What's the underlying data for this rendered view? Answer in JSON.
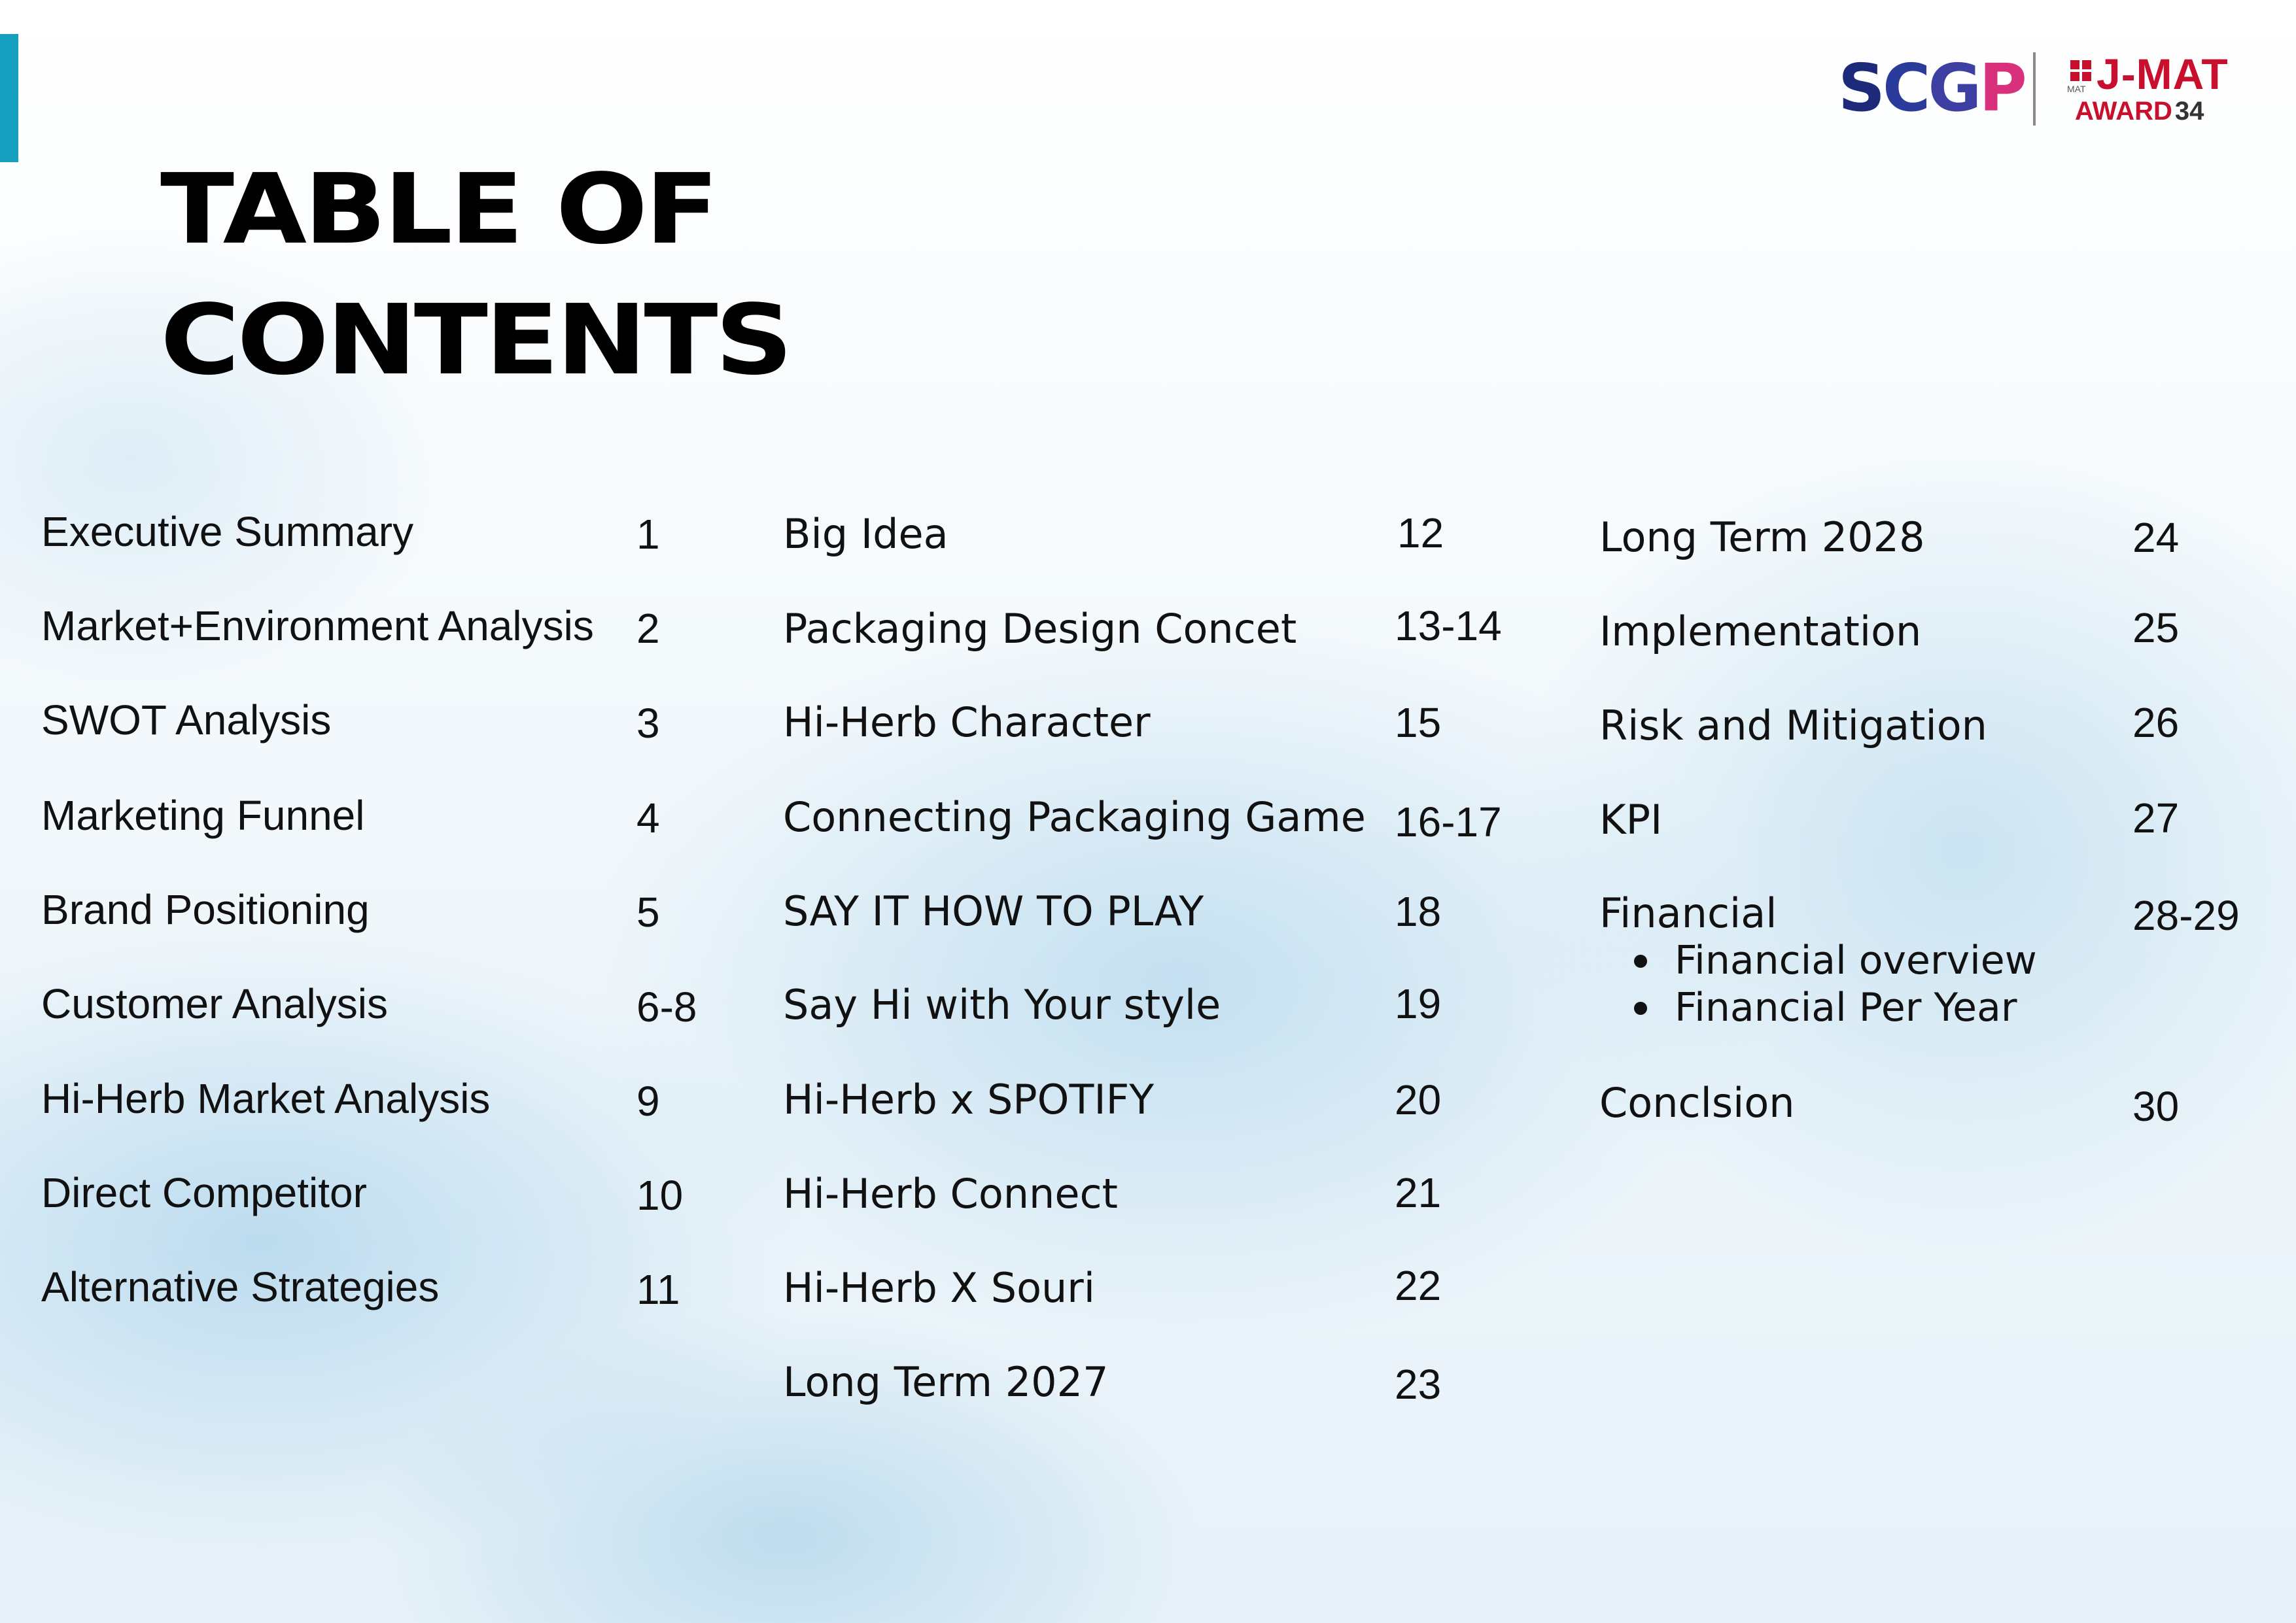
{
  "title": {
    "line1": "TABLE OF",
    "line2": "CONTENTS"
  },
  "logos": {
    "scgp": [
      "S",
      "C",
      "G",
      "P"
    ],
    "jmat_small": "MAT",
    "jmat_title": "J-MAT",
    "jmat_award": "AWARD",
    "jmat_number": "34"
  },
  "columns": [
    {
      "items": [
        {
          "label": "Executive Summary",
          "page": "1"
        },
        {
          "label": "Market+Environment Analysis",
          "page": "2"
        },
        {
          "label": "SWOT Analysis",
          "page": "3"
        },
        {
          "label": "Marketing Funnel",
          "page": "4"
        },
        {
          "label": "Brand Positioning",
          "page": "5"
        },
        {
          "label": "Customer Analysis",
          "page": "6-8"
        },
        {
          "label": "Hi-Herb Market Analysis",
          "page": "9"
        },
        {
          "label": "Direct Competitor",
          "page": "10"
        },
        {
          "label": "Alternative Strategies",
          "page": "11"
        }
      ]
    },
    {
      "items": [
        {
          "label": "Big Idea",
          "page": "12"
        },
        {
          "label": "Packaging Design Concet",
          "page": "13-14"
        },
        {
          "label": "Hi-Herb Character",
          "page": "15"
        },
        {
          "label": "Connecting Packaging Game",
          "page": "16-17"
        },
        {
          "label": "SAY IT HOW TO PLAY",
          "page": "18"
        },
        {
          "label": "Say Hi with Your style",
          "page": "19"
        },
        {
          "label": "Hi-Herb x SPOTIFY",
          "page": "20"
        },
        {
          "label": "Hi-Herb Connect",
          "page": "21"
        },
        {
          "label": "Hi-Herb X Souri",
          "page": "22"
        },
        {
          "label": "Long Term 2027",
          "page": "23"
        }
      ]
    },
    {
      "items": [
        {
          "label": "Long Term 2028",
          "page": "24"
        },
        {
          "label": "Implementation",
          "page": "25"
        },
        {
          "label": "Risk and Mitigation",
          "page": "26"
        },
        {
          "label": "KPI",
          "page": "27"
        },
        {
          "label": "Financial",
          "page": "28-29",
          "subitems": [
            "Financial overview",
            "Financial Per Year"
          ]
        },
        {
          "label": "Conclsion",
          "page": "30"
        }
      ]
    }
  ]
}
